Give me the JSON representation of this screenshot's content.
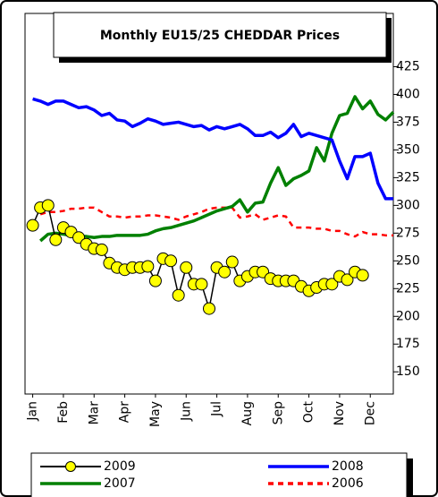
{
  "chart_data": {
    "type": "line",
    "title": "Monthly EU15/25 CHEDDAR Prices",
    "x": [
      0,
      0.25,
      0.5,
      0.75,
      1,
      1.25,
      1.5,
      1.75,
      2,
      2.25,
      2.5,
      2.75,
      3,
      3.25,
      3.5,
      3.75,
      4,
      4.25,
      4.5,
      4.75,
      5,
      5.25,
      5.5,
      5.75,
      6,
      6.25,
      6.5,
      6.75,
      7,
      7.25,
      7.5,
      7.75,
      8,
      8.25,
      8.5,
      8.75,
      9,
      9.25,
      9.5,
      9.75,
      10,
      10.25,
      10.5,
      10.75,
      11,
      11.25,
      11.5,
      11.75
    ],
    "xlim": [
      -0.25,
      11.75
    ],
    "xticks": [
      {
        "value": 0,
        "label": "Jan"
      },
      {
        "value": 1,
        "label": "Feb"
      },
      {
        "value": 2,
        "label": "Mar"
      },
      {
        "value": 3,
        "label": "Apr"
      },
      {
        "value": 4,
        "label": "May"
      },
      {
        "value": 5,
        "label": "Jun"
      },
      {
        "value": 6,
        "label": "Jul"
      },
      {
        "value": 7,
        "label": "Aug"
      },
      {
        "value": 8,
        "label": "Sep"
      },
      {
        "value": 9,
        "label": "Oct"
      },
      {
        "value": 10,
        "label": "Nov"
      },
      {
        "value": 11,
        "label": "Dec"
      }
    ],
    "ylim": [
      130,
      473
    ],
    "yticks": [
      150,
      175,
      200,
      225,
      250,
      275,
      300,
      325,
      350,
      375,
      400,
      425
    ],
    "series": [
      {
        "name": "2009",
        "color": "#000000",
        "marker": "circle",
        "marker_color": "#ffff00",
        "values": [
          282,
          298,
          300,
          269,
          280,
          276,
          271,
          265,
          261,
          260,
          248,
          244,
          242,
          244,
          244,
          245,
          232,
          252,
          250,
          219,
          244,
          229,
          229,
          207,
          244,
          240,
          249,
          232,
          236,
          240,
          240,
          234,
          232,
          232,
          232,
          227,
          223,
          226,
          229,
          229,
          236,
          233,
          240,
          237,
          null,
          null,
          null,
          null
        ]
      },
      {
        "name": "2008",
        "color": "#0000ff",
        "values": [
          396,
          394,
          391,
          394,
          394,
          391,
          388,
          389,
          386,
          381,
          383,
          377,
          376,
          371,
          374,
          378,
          376,
          373,
          374,
          375,
          373,
          371,
          372,
          368,
          371,
          369,
          371,
          373,
          369,
          363,
          363,
          366,
          361,
          365,
          373,
          362,
          365,
          363,
          361,
          359,
          340,
          324,
          344,
          344,
          347,
          320,
          306,
          306
        ]
      },
      {
        "name": "2007",
        "color": "#008000",
        "values": [
          null,
          268,
          274,
          275,
          274,
          273,
          272,
          272,
          271,
          272,
          272,
          273,
          273,
          273,
          273,
          274,
          277,
          279,
          280,
          282,
          284,
          286,
          289,
          292,
          295,
          297,
          299,
          305,
          294,
          302,
          303,
          320,
          334,
          318,
          324,
          327,
          331,
          352,
          340,
          365,
          381,
          383,
          398,
          387,
          394,
          382,
          377,
          384
        ]
      },
      {
        "name": "2006",
        "color": "#ff0000",
        "dashed": true,
        "values": [
          null,
          292,
          294,
          294,
          295,
          297,
          297,
          298,
          298,
          294,
          290,
          290,
          289,
          290,
          290,
          291,
          291,
          290,
          289,
          287,
          290,
          292,
          294,
          297,
          298,
          298,
          298,
          289,
          290,
          292,
          287,
          289,
          291,
          290,
          280,
          280,
          280,
          279,
          279,
          277,
          277,
          274,
          272,
          276,
          274,
          274,
          273,
          273
        ]
      }
    ],
    "legend": "bottom",
    "legend_columns": 2,
    "draw_order": [
      3,
      2,
      1,
      0
    ]
  }
}
